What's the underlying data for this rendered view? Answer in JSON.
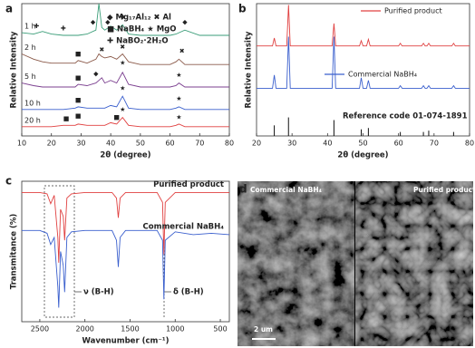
{
  "chart_data": [
    {
      "type": "line",
      "panel_label": "a",
      "x_label": "2θ (degree)",
      "y_label": "Relative Intensity",
      "xlim": [
        10,
        80
      ],
      "xticks": [
        10,
        20,
        30,
        40,
        50,
        60,
        70,
        80
      ],
      "ylim": [
        0,
        100
      ],
      "x": [
        10,
        14,
        17,
        20,
        24,
        28,
        29,
        32,
        35,
        36,
        37,
        38,
        40,
        42,
        44,
        46,
        50,
        55,
        60,
        62,
        63,
        65,
        70,
        75,
        80
      ],
      "series": [
        {
          "name": "1 h",
          "color": "#3a9d78",
          "values": [
            78,
            77,
            79,
            77,
            76,
            76,
            76,
            77,
            80,
            100,
            82,
            80,
            83,
            80,
            84,
            77,
            76,
            76,
            76,
            77,
            78,
            80,
            76,
            76,
            76
          ]
        },
        {
          "name": "2 h",
          "color": "#8b5a4a",
          "values": [
            62,
            58,
            56,
            55,
            55,
            55,
            57,
            55,
            58,
            62,
            60,
            59,
            60,
            58,
            62,
            56,
            54,
            54,
            54,
            56,
            58,
            54,
            54,
            54,
            54
          ]
        },
        {
          "name": "5 h",
          "color": "#7b3f8f",
          "values": [
            40,
            38,
            37,
            37,
            37,
            37,
            39,
            38,
            40,
            42,
            44,
            40,
            42,
            40,
            48,
            39,
            37,
            37,
            37,
            38,
            40,
            37,
            37,
            37,
            37
          ]
        },
        {
          "name": "10 h",
          "color": "#3a5fcd",
          "values": [
            20,
            20,
            20,
            20,
            20,
            21,
            22,
            21,
            21,
            21,
            21,
            21,
            23,
            22,
            30,
            21,
            20,
            20,
            20,
            21,
            22,
            20,
            20,
            20,
            20
          ]
        },
        {
          "name": "20 h",
          "color": "#e04040",
          "values": [
            7,
            7,
            7,
            7,
            8,
            8,
            9,
            8,
            8,
            8,
            8,
            8,
            10,
            9,
            14,
            8,
            7,
            7,
            7,
            8,
            9,
            7,
            7,
            7,
            7
          ]
        }
      ],
      "markers": [
        {
          "x": 15,
          "y": 83,
          "symbol": "✚"
        },
        {
          "x": 24,
          "y": 81,
          "symbol": "✚"
        },
        {
          "x": 34,
          "y": 86,
          "symbol": "◆"
        },
        {
          "x": 39,
          "y": 86,
          "symbol": "◆"
        },
        {
          "x": 44,
          "y": 90,
          "symbol": "◆"
        },
        {
          "x": 65,
          "y": 86,
          "symbol": "◆"
        },
        {
          "x": 29,
          "y": 62,
          "symbol": "■"
        },
        {
          "x": 37,
          "y": 65,
          "symbol": "✖"
        },
        {
          "x": 44,
          "y": 67,
          "symbol": "✖"
        },
        {
          "x": 64,
          "y": 64,
          "symbol": "✖"
        },
        {
          "x": 29,
          "y": 44,
          "symbol": "■"
        },
        {
          "x": 35,
          "y": 47,
          "symbol": "◆"
        },
        {
          "x": 44,
          "y": 55,
          "symbol": "★"
        },
        {
          "x": 63,
          "y": 46,
          "symbol": "★"
        },
        {
          "x": 29,
          "y": 27,
          "symbol": "■"
        },
        {
          "x": 44,
          "y": 36,
          "symbol": "★"
        },
        {
          "x": 63,
          "y": 28,
          "symbol": "★"
        },
        {
          "x": 25,
          "y": 13,
          "symbol": "■"
        },
        {
          "x": 29,
          "y": 15,
          "symbol": "■"
        },
        {
          "x": 42,
          "y": 14,
          "symbol": "■"
        },
        {
          "x": 44,
          "y": 20,
          "symbol": "★"
        },
        {
          "x": 63,
          "y": 14,
          "symbol": "★"
        }
      ],
      "annotations": [
        "◆ Mg₁₇Al₁₂ ✖ Al",
        "■ NaBH₄ ★ MgO",
        "✚ NaBO₂·2H₂O"
      ]
    },
    {
      "type": "line",
      "panel_label": "b",
      "x_label": "2θ (degree)",
      "y_label": "Relative Intensity",
      "xlim": [
        20,
        80
      ],
      "xticks": [
        20,
        30,
        40,
        50,
        60,
        70,
        80
      ],
      "ylim": [
        0,
        100
      ],
      "x": [
        20,
        24.5,
        25,
        25.5,
        28.5,
        29,
        29.5,
        41.3,
        41.8,
        42.3,
        49,
        49.5,
        50,
        51,
        51.5,
        52,
        60,
        60.5,
        61,
        66.5,
        67,
        67.5,
        68,
        68.5,
        69,
        75,
        75.5,
        76,
        80
      ],
      "series": [
        {
          "name": "Purified product",
          "color": "#e04040",
          "values": [
            68,
            68,
            74,
            68,
            68,
            99,
            68,
            68,
            85,
            68,
            68,
            72,
            68,
            68,
            73,
            68,
            68,
            70,
            68,
            68,
            70,
            68,
            68,
            70,
            68,
            68,
            70,
            68,
            68
          ]
        },
        {
          "name": "Commercial NaBH₄",
          "color": "#3a5fcd",
          "values": [
            36,
            36,
            46,
            36,
            36,
            75,
            36,
            36,
            75,
            36,
            36,
            44,
            36,
            36,
            42,
            36,
            36,
            38,
            36,
            36,
            38,
            36,
            36,
            38,
            36,
            36,
            38,
            36,
            36
          ]
        }
      ],
      "reference": {
        "name": "Reference code 01-074-1891",
        "color": "#111111",
        "x": [
          25,
          29,
          41.8,
          49.5,
          51.5,
          60.5,
          67,
          68.5,
          75.5
        ],
        "values": [
          8,
          14,
          12,
          5,
          6,
          3,
          3,
          4,
          3
        ]
      }
    },
    {
      "type": "line",
      "panel_label": "c",
      "x_label": "Wavenumber (cm⁻¹)",
      "y_label": "Transmitance (%)",
      "xlim": [
        2700,
        400
      ],
      "xticks": [
        2500,
        2000,
        1500,
        1000,
        500
      ],
      "ylim": [
        0,
        100
      ],
      "x": [
        2700,
        2500,
        2420,
        2380,
        2340,
        2300,
        2290,
        2270,
        2240,
        2225,
        2200,
        2150,
        2000,
        1700,
        1650,
        1630,
        1610,
        1550,
        1200,
        1140,
        1125,
        1110,
        1000,
        800,
        600,
        400
      ],
      "series": [
        {
          "name": "Purified product",
          "color": "#e04040",
          "values": [
            92,
            92,
            91,
            84,
            90,
            60,
            42,
            80,
            75,
            58,
            88,
            91,
            92,
            92,
            88,
            74,
            88,
            92,
            92,
            85,
            48,
            85,
            92,
            92,
            92,
            92
          ]
        },
        {
          "name": "Commercial NaBH₄",
          "color": "#3a5fcd",
          "values": [
            65,
            65,
            63,
            55,
            60,
            25,
            10,
            50,
            40,
            21,
            60,
            64,
            65,
            65,
            58,
            39,
            60,
            65,
            65,
            58,
            16,
            58,
            64,
            62,
            63,
            62
          ]
        }
      ],
      "annotations": [
        "ν (B-H)",
        "δ (B-H)"
      ]
    }
  ],
  "image_panel": {
    "panel_label": "d",
    "left_label": "Commercial NaBH₄",
    "right_label": "Purified product",
    "scale_bar": "2 um"
  }
}
